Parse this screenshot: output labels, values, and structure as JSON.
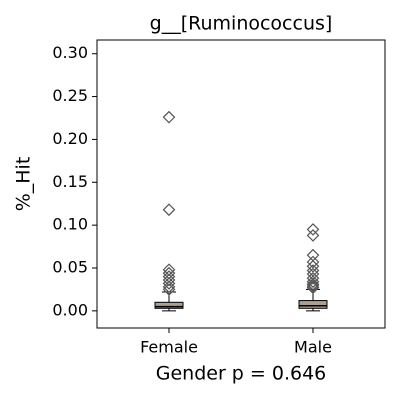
{
  "chart_data": {
    "type": "box",
    "title": "g__[Ruminococcus]",
    "y_label": "%_Hit",
    "x_label": "Gender p = 0.646",
    "categories": [
      "Female",
      "Male"
    ],
    "box_color": "#ada093",
    "boxes": [
      {
        "whislo": 0.0,
        "q1": 0.003,
        "med": 0.005,
        "q3": 0.01,
        "whishi": 0.022,
        "fliers": [
          0.226,
          0.118,
          0.048,
          0.044,
          0.04,
          0.036,
          0.032,
          0.028,
          0.025
        ]
      },
      {
        "whislo": 0.0,
        "q1": 0.003,
        "med": 0.006,
        "q3": 0.012,
        "whishi": 0.025,
        "fliers": [
          0.095,
          0.088,
          0.065,
          0.057,
          0.052,
          0.047,
          0.043,
          0.038,
          0.034,
          0.031,
          0.029,
          0.027
        ]
      }
    ],
    "ylim": [
      -0.02,
      0.316
    ],
    "yticks": [
      {
        "value": 0.0,
        "label": "0.00"
      },
      {
        "value": 0.05,
        "label": "0.05"
      },
      {
        "value": 0.1,
        "label": "0.10"
      },
      {
        "value": 0.15,
        "label": "0.15"
      },
      {
        "value": 0.2,
        "label": "0.20"
      },
      {
        "value": 0.25,
        "label": "0.25"
      },
      {
        "value": 0.3,
        "label": "0.30"
      }
    ]
  }
}
